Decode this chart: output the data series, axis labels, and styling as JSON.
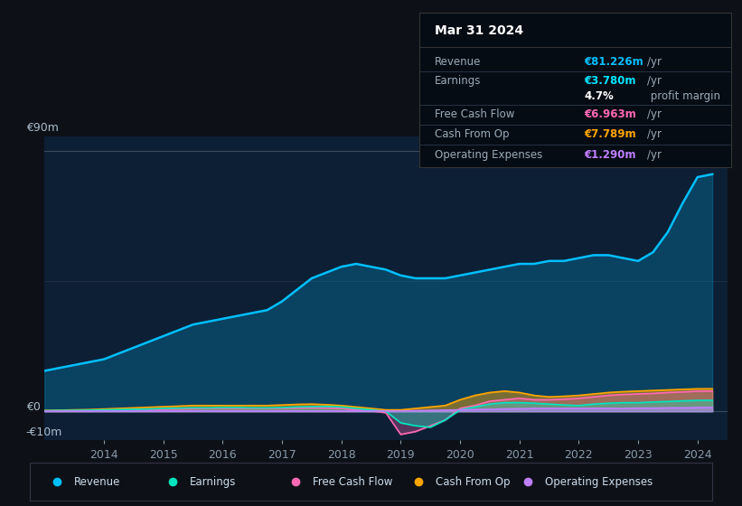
{
  "background_color": "#0d1117",
  "plot_bg_color": "#0d1f35",
  "grid_color": "#2a3a4a",
  "title_box": {
    "date": "Mar 31 2024",
    "rows": [
      {
        "label": "Revenue",
        "value": "€81.226m",
        "unit": "/yr",
        "value_color": "#00bfff"
      },
      {
        "label": "Earnings",
        "value": "€3.780m",
        "unit": "/yr",
        "value_color": "#00e5ff"
      },
      {
        "label": "",
        "value": "4.7%",
        "unit": " profit margin",
        "value_color": "#ffffff"
      },
      {
        "label": "Free Cash Flow",
        "value": "€6.963m",
        "unit": "/yr",
        "value_color": "#ff69b4"
      },
      {
        "label": "Cash From Op",
        "value": "€7.789m",
        "unit": "/yr",
        "value_color": "#ffa500"
      },
      {
        "label": "Operating Expenses",
        "value": "€1.290m",
        "unit": "/yr",
        "value_color": "#bf7fff"
      }
    ]
  },
  "years": [
    2013.0,
    2013.25,
    2013.5,
    2013.75,
    2014.0,
    2014.25,
    2014.5,
    2014.75,
    2015.0,
    2015.25,
    2015.5,
    2015.75,
    2016.0,
    2016.25,
    2016.5,
    2016.75,
    2017.0,
    2017.25,
    2017.5,
    2017.75,
    2018.0,
    2018.25,
    2018.5,
    2018.75,
    2019.0,
    2019.25,
    2019.5,
    2019.75,
    2020.0,
    2020.25,
    2020.5,
    2020.75,
    2021.0,
    2021.25,
    2021.5,
    2021.75,
    2022.0,
    2022.25,
    2022.5,
    2022.75,
    2023.0,
    2023.25,
    2023.5,
    2023.75,
    2024.0,
    2024.25
  ],
  "revenue": [
    14,
    15,
    16,
    17,
    18,
    20,
    22,
    24,
    26,
    28,
    30,
    31,
    32,
    33,
    34,
    35,
    38,
    42,
    46,
    48,
    50,
    51,
    50,
    49,
    47,
    46,
    46,
    46,
    47,
    48,
    49,
    50,
    51,
    51,
    52,
    52,
    53,
    54,
    54,
    53,
    52,
    55,
    62,
    72,
    81,
    82
  ],
  "earnings": [
    0.2,
    0.3,
    0.3,
    0.4,
    0.5,
    0.6,
    0.7,
    0.8,
    1.0,
    1.1,
    1.2,
    1.2,
    1.3,
    1.3,
    1.2,
    1.2,
    1.3,
    1.5,
    1.6,
    1.7,
    1.5,
    1.0,
    0.5,
    0.0,
    -4.0,
    -5.0,
    -5.5,
    -3.0,
    0.5,
    1.5,
    2.5,
    3.0,
    3.0,
    2.8,
    2.5,
    2.2,
    2.0,
    2.5,
    2.8,
    3.0,
    3.0,
    3.2,
    3.4,
    3.6,
    3.78,
    3.8
  ],
  "free_cash_flow": [
    0.1,
    0.1,
    0.2,
    0.2,
    0.3,
    0.4,
    0.5,
    0.6,
    0.7,
    0.8,
    0.9,
    1.0,
    1.0,
    1.0,
    1.0,
    1.0,
    1.0,
    1.1,
    1.2,
    1.1,
    1.0,
    0.5,
    0.2,
    -0.5,
    -8.0,
    -7.0,
    -5.0,
    -3.0,
    1.0,
    2.0,
    3.5,
    4.0,
    4.5,
    4.0,
    4.0,
    4.2,
    4.5,
    5.0,
    5.5,
    5.8,
    6.0,
    6.2,
    6.5,
    6.7,
    6.963,
    7.0
  ],
  "cash_from_op": [
    0.3,
    0.4,
    0.5,
    0.6,
    0.8,
    1.0,
    1.2,
    1.4,
    1.6,
    1.8,
    2.0,
    2.0,
    2.0,
    2.0,
    2.0,
    2.0,
    2.2,
    2.4,
    2.5,
    2.3,
    2.0,
    1.5,
    1.0,
    0.5,
    0.5,
    1.0,
    1.5,
    2.0,
    4.0,
    5.5,
    6.5,
    7.0,
    6.5,
    5.5,
    5.0,
    5.2,
    5.5,
    6.0,
    6.5,
    6.8,
    7.0,
    7.2,
    7.4,
    7.6,
    7.789,
    7.8
  ],
  "operating_expenses": [
    0.05,
    0.06,
    0.07,
    0.08,
    0.1,
    0.1,
    0.1,
    0.1,
    0.1,
    0.1,
    0.1,
    0.1,
    0.1,
    0.1,
    0.1,
    0.1,
    0.1,
    0.1,
    0.1,
    0.1,
    0.1,
    0.1,
    0.1,
    0.1,
    0.1,
    0.2,
    0.3,
    0.4,
    0.5,
    0.6,
    0.7,
    0.8,
    0.9,
    1.0,
    1.0,
    1.0,
    1.0,
    1.0,
    1.0,
    1.0,
    1.1,
    1.1,
    1.2,
    1.2,
    1.29,
    1.3
  ],
  "colors": {
    "revenue": "#00bfff",
    "earnings": "#00e5c0",
    "free_cash_flow": "#ff69b4",
    "cash_from_op": "#ffa500",
    "operating_expenses": "#bf7fff"
  },
  "ylim": [
    -10,
    95
  ],
  "xlim": [
    2013.0,
    2024.5
  ],
  "xticks": [
    2014,
    2015,
    2016,
    2017,
    2018,
    2019,
    2020,
    2021,
    2022,
    2023,
    2024
  ],
  "legend": [
    {
      "label": "Revenue",
      "color": "#00bfff"
    },
    {
      "label": "Earnings",
      "color": "#00e5c0"
    },
    {
      "label": "Free Cash Flow",
      "color": "#ff69b4"
    },
    {
      "label": "Cash From Op",
      "color": "#ffa500"
    },
    {
      "label": "Operating Expenses",
      "color": "#bf7fff"
    }
  ]
}
